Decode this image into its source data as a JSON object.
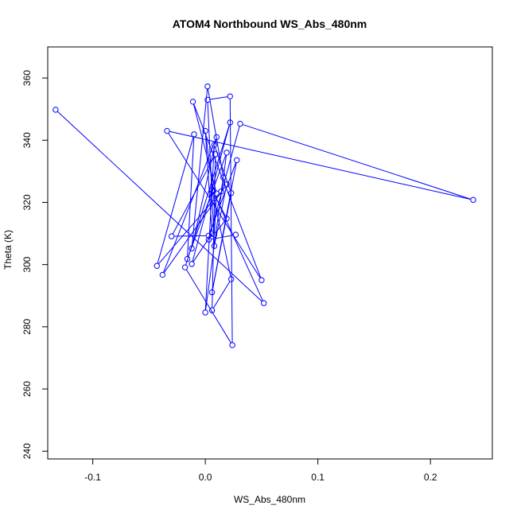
{
  "chart_data": {
    "type": "line",
    "title": "ATOM4 Northbound WS_Abs_480nm",
    "xlabel": "WS_Abs_480nm",
    "ylabel": "Theta (K)",
    "xlim": [
      -0.14,
      0.255
    ],
    "ylim": [
      237.5,
      370
    ],
    "xticks": [
      -0.1,
      0.0,
      0.1,
      0.2
    ],
    "xtick_labels": [
      "-0.1",
      "0.0",
      "0.1",
      "0.2"
    ],
    "yticks": [
      240,
      260,
      280,
      300,
      320,
      340,
      360
    ],
    "ytick_labels": [
      "240",
      "260",
      "280",
      "300",
      "320",
      "340",
      "360"
    ],
    "grid": false,
    "legend": "none",
    "color": "#0000ff",
    "points": [
      {
        "x": -0.133,
        "y": 349.8
      },
      {
        "x": 0.052,
        "y": 287.6
      },
      {
        "x": 0.007,
        "y": 323.5
      },
      {
        "x": 0.0,
        "y": 343.0
      },
      {
        "x": 0.006,
        "y": 310.0
      },
      {
        "x": -0.012,
        "y": 300.2
      },
      {
        "x": 0.022,
        "y": 345.7
      },
      {
        "x": -0.018,
        "y": 299.1
      },
      {
        "x": 0.024,
        "y": 274.1
      },
      {
        "x": 0.022,
        "y": 354.1
      },
      {
        "x": 0.002,
        "y": 353.0
      },
      {
        "x": 0.008,
        "y": 306.0
      },
      {
        "x": 0.019,
        "y": 325.8
      },
      {
        "x": -0.038,
        "y": 296.7
      },
      {
        "x": 0.01,
        "y": 341.0
      },
      {
        "x": -0.012,
        "y": 305.2
      },
      {
        "x": 0.002,
        "y": 357.3
      },
      {
        "x": 0.016,
        "y": 328.0
      },
      {
        "x": 0.014,
        "y": 323.5
      },
      {
        "x": -0.043,
        "y": 299.6
      },
      {
        "x": -0.01,
        "y": 341.9
      },
      {
        "x": -0.016,
        "y": 301.8
      },
      {
        "x": 0.019,
        "y": 336.0
      },
      {
        "x": 0.0,
        "y": 284.6
      },
      {
        "x": 0.008,
        "y": 338.5
      },
      {
        "x": 0.023,
        "y": 323.0
      },
      {
        "x": 0.006,
        "y": 291.1
      },
      {
        "x": 0.028,
        "y": 333.6
      },
      {
        "x": 0.003,
        "y": 309.3
      },
      {
        "x": -0.03,
        "y": 309.1
      },
      {
        "x": 0.009,
        "y": 335.5
      },
      {
        "x": 0.006,
        "y": 285.3
      },
      {
        "x": 0.023,
        "y": 295.3
      },
      {
        "x": 0.006,
        "y": 323.9
      },
      {
        "x": 0.019,
        "y": 314.8
      },
      {
        "x": 0.008,
        "y": 309.6
      },
      {
        "x": 0.01,
        "y": 322.9
      },
      {
        "x": -0.011,
        "y": 352.4
      },
      {
        "x": 0.05,
        "y": 295.0
      },
      {
        "x": -0.034,
        "y": 343.0
      },
      {
        "x": 0.238,
        "y": 320.8
      },
      {
        "x": 0.031,
        "y": 345.3
      },
      {
        "x": 0.003,
        "y": 308.0
      },
      {
        "x": 0.027,
        "y": 309.6
      }
    ]
  }
}
